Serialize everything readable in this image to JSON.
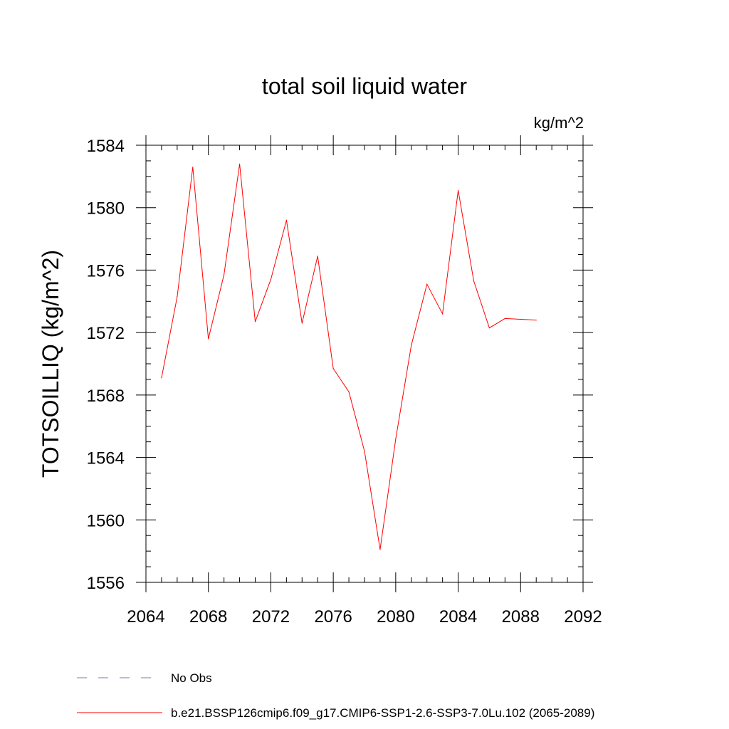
{
  "chart_data": {
    "type": "line",
    "title": "total soil liquid water",
    "units_label": "kg/m^2",
    "ylabel": "TOTSOILLIQ  (kg/m^2)",
    "xlabel": "",
    "xlim": [
      2064,
      2092
    ],
    "ylim": [
      1556,
      1584
    ],
    "x_ticks": [
      2064,
      2068,
      2072,
      2076,
      2080,
      2084,
      2088,
      2092
    ],
    "y_ticks": [
      1556,
      1560,
      1564,
      1568,
      1572,
      1576,
      1580,
      1584
    ],
    "x_minor_step": 1,
    "y_minor_step": 1,
    "grid": false,
    "legend_position": "bottom-left",
    "series": [
      {
        "name": "b.e21.BSSP126cmip6.f09_g17.CMIP6-SSP1-2.6-SSP3-7.0Lu.102 (2065-2089)",
        "color": "#ff0000",
        "style": "solid",
        "x": [
          2065,
          2066,
          2067,
          2068,
          2069,
          2070,
          2071,
          2072,
          2073,
          2074,
          2075,
          2076,
          2077,
          2078,
          2079,
          2080,
          2081,
          2082,
          2083,
          2084,
          2085,
          2086,
          2087,
          2088,
          2089
        ],
        "values": [
          1569.1,
          1574.3,
          1582.6,
          1571.6,
          1575.7,
          1582.8,
          1572.7,
          1575.4,
          1579.2,
          1572.6,
          1576.9,
          1569.7,
          1568.2,
          1564.4,
          1558.1,
          1565.2,
          1571.2,
          1575.1,
          1573.2,
          1581.1,
          1575.3,
          1572.3,
          1572.9,
          1572.85,
          1572.8
        ]
      }
    ],
    "legend": [
      {
        "label": "No Obs",
        "color": "#8070b0",
        "style": "dashed"
      },
      {
        "label": "b.e21.BSSP126cmip6.f09_g17.CMIP6-SSP1-2.6-SSP3-7.0Lu.102 (2065-2089)",
        "color": "#ff0000",
        "style": "solid"
      }
    ]
  }
}
